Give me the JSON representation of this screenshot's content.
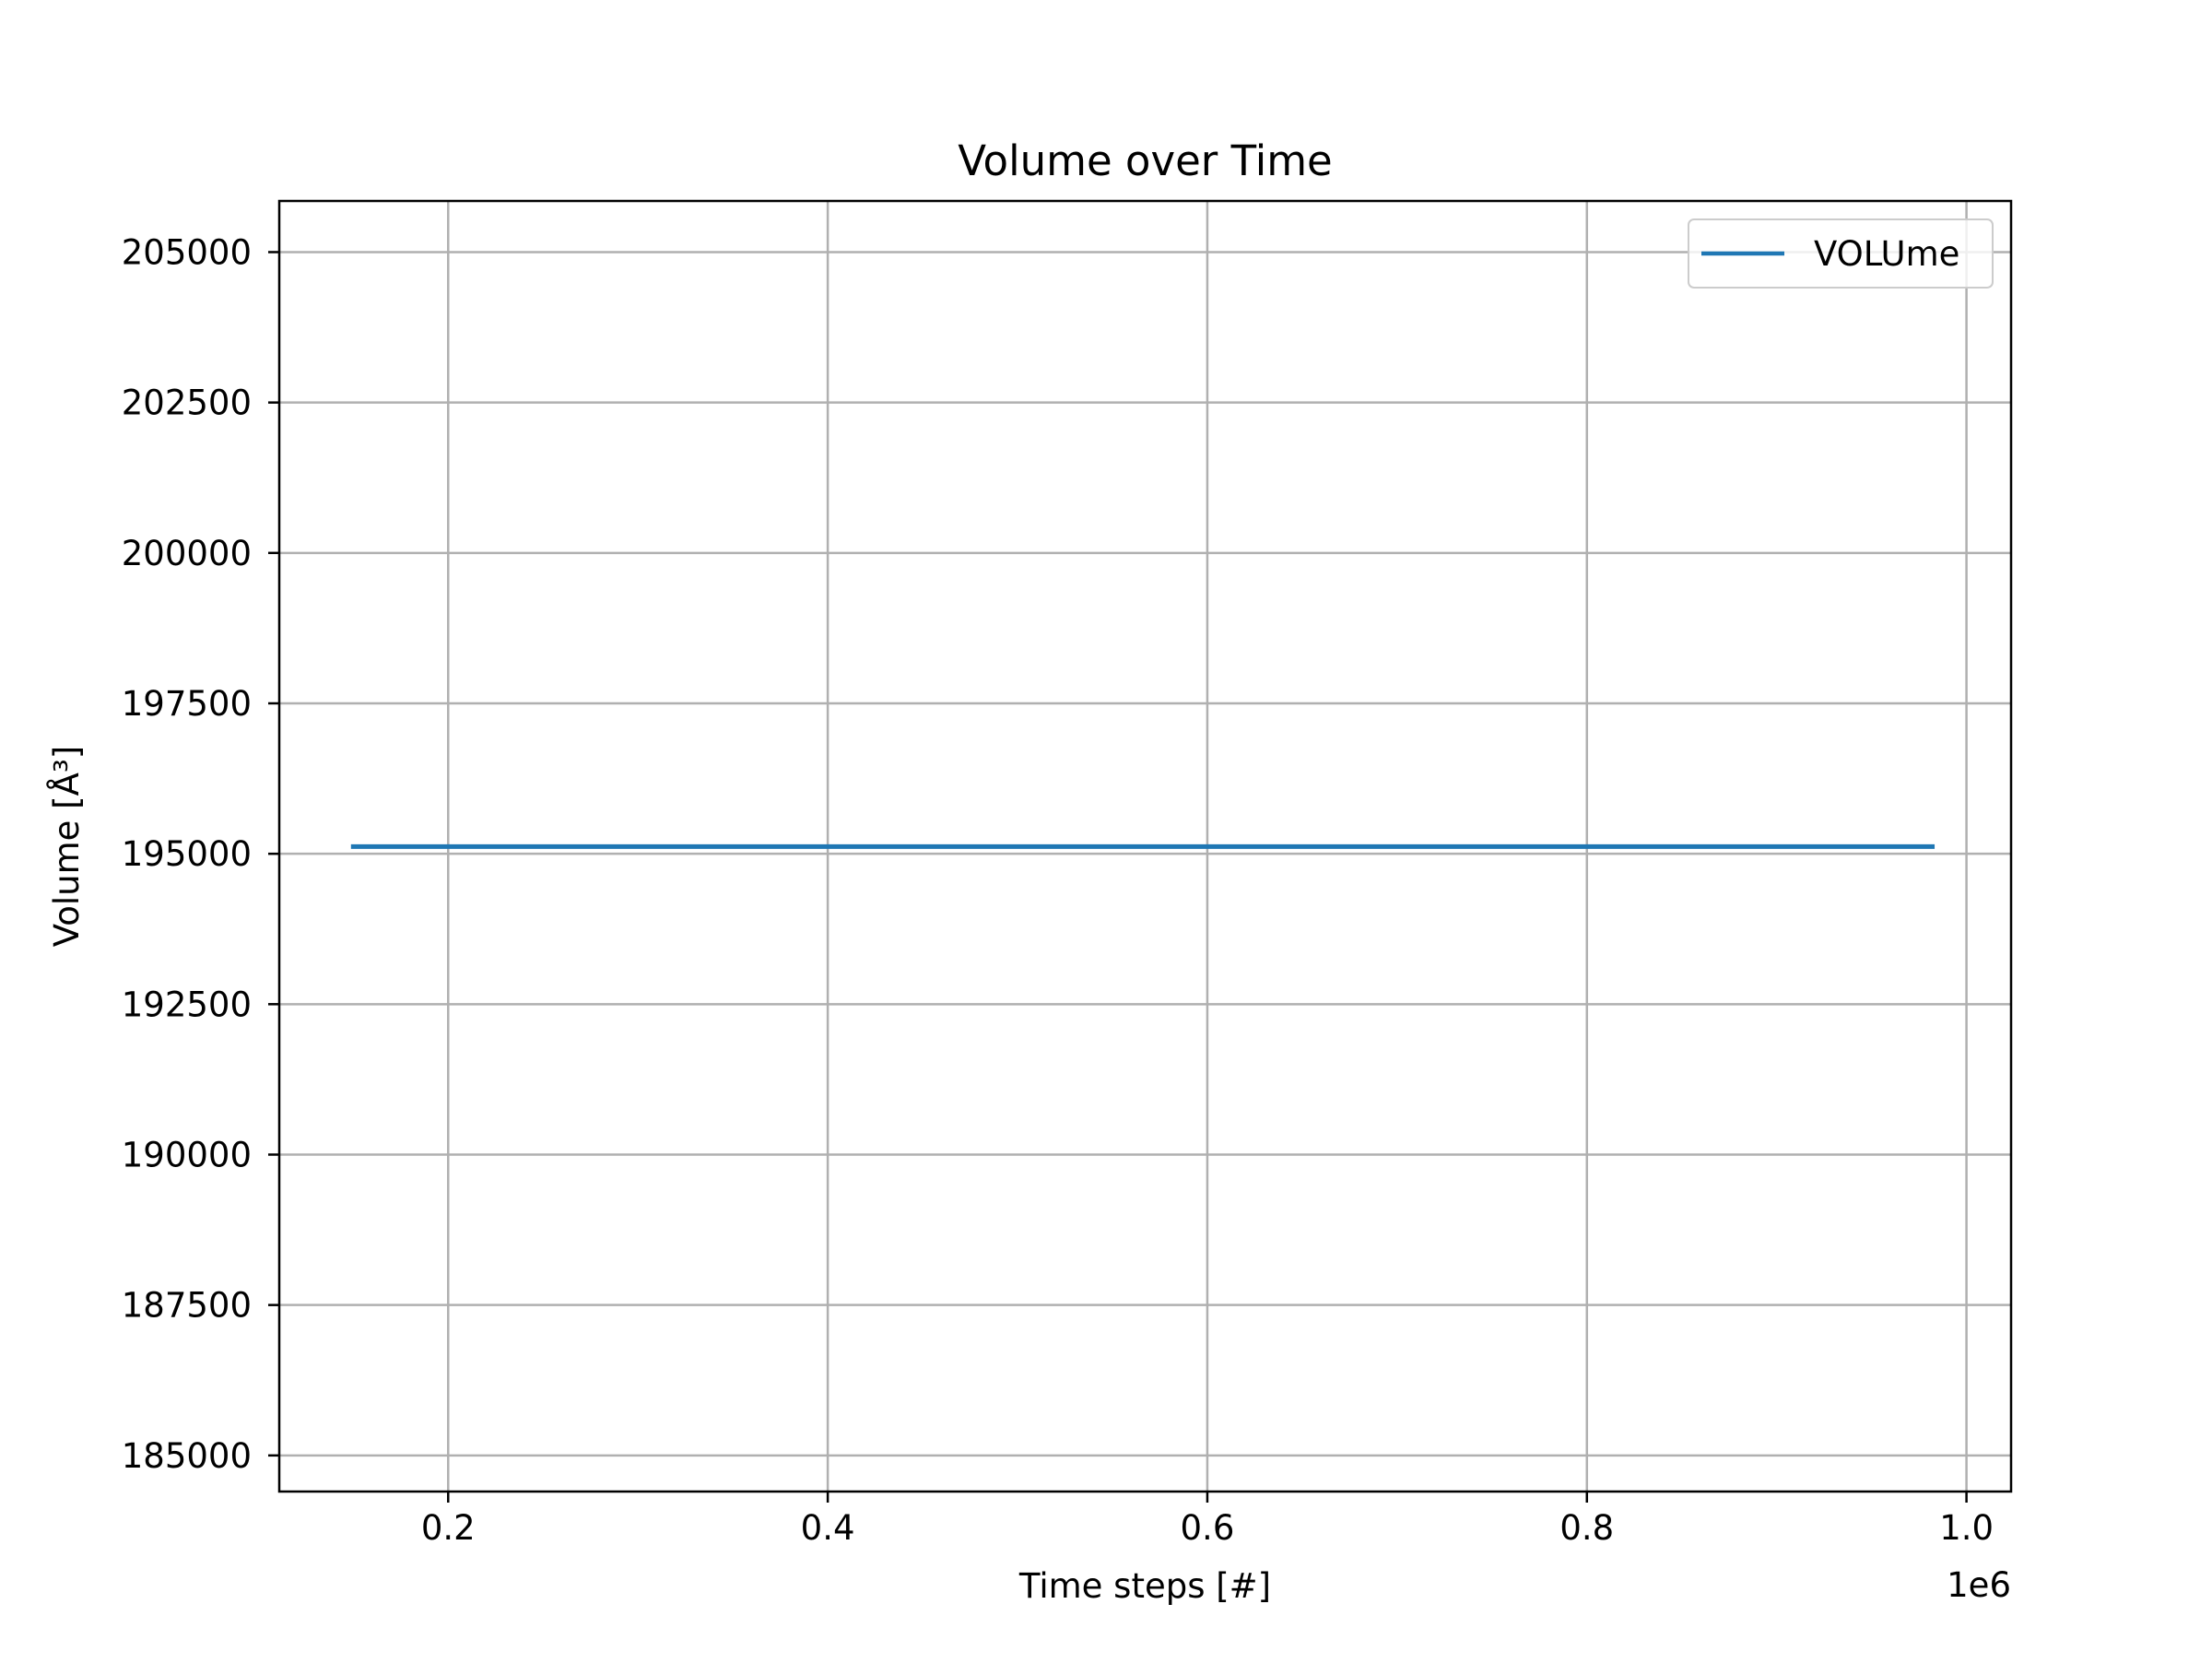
{
  "chart_data": {
    "type": "line",
    "title": "Volume over Time",
    "xlabel": "Time steps [#]",
    "ylabel": "Volume [Å³]",
    "x_offset_label": "1e6",
    "xlim": [
      0.111,
      1.0235
    ],
    "ylim": [
      184400,
      205850
    ],
    "x_ticks": [
      0.2,
      0.4,
      0.6,
      0.8,
      1.0
    ],
    "x_tick_labels": [
      "0.2",
      "0.4",
      "0.6",
      "0.8",
      "1.0"
    ],
    "y_ticks": [
      185000,
      187500,
      190000,
      192500,
      195000,
      197500,
      200000,
      202500,
      205000
    ],
    "y_tick_labels": [
      "185000",
      "187500",
      "190000",
      "192500",
      "195000",
      "197500",
      "200000",
      "202500",
      "205000"
    ],
    "grid": true,
    "legend_position": "top-right",
    "series": [
      {
        "name": "VOLUme",
        "color": "#1f77b4",
        "x": [
          0.15,
          0.982
        ],
        "y": [
          195120,
          195120
        ]
      }
    ]
  },
  "colors": {
    "grid": "#b0b0b0",
    "axes": "#000000",
    "legend_border": "#cccccc"
  }
}
